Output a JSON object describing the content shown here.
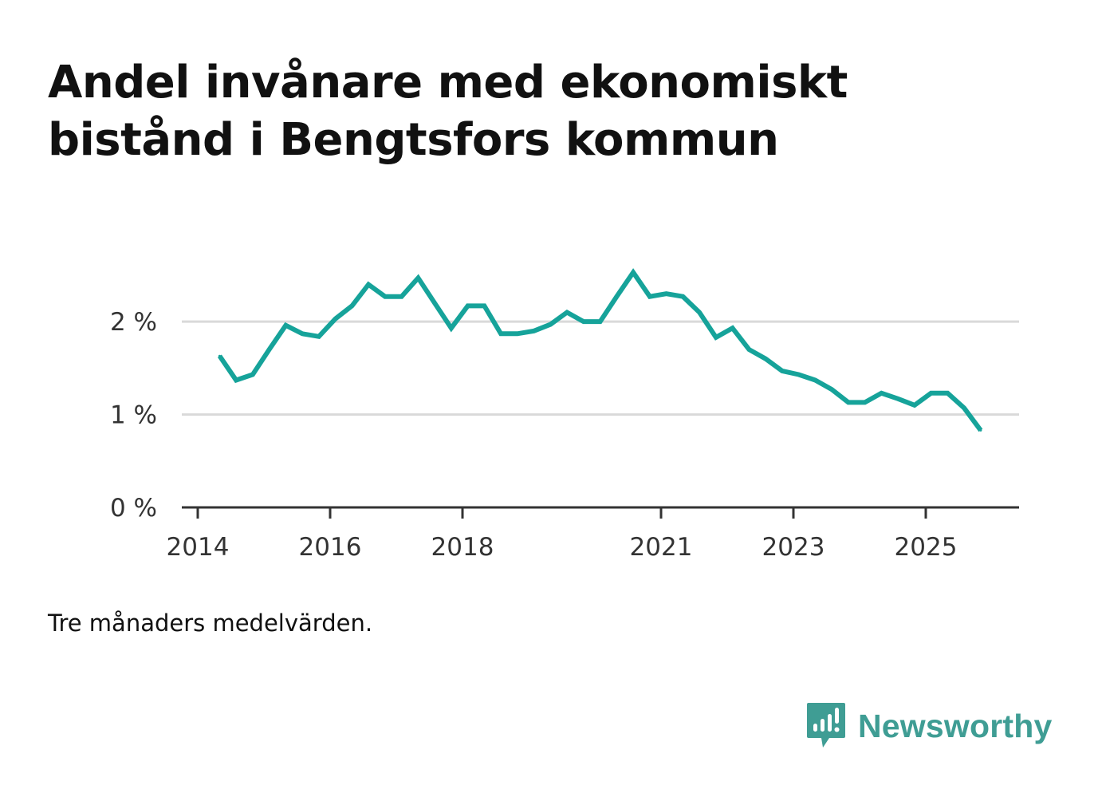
{
  "title": "Andel invånare med ekonomiskt bistånd i Bengtsfors kommun",
  "note": "Tre månaders medelvärden.",
  "brand": {
    "name": "Newsworthy",
    "icon": "newsworthy-logo-icon",
    "color": "#3f9d94"
  },
  "colors": {
    "line": "#16a39a",
    "grid": "#d9d9d9",
    "axis": "#333333"
  },
  "chart_data": {
    "type": "line",
    "title": "Andel invånare med ekonomiskt bistånd i Bengtsfors kommun",
    "xlabel": "",
    "ylabel": "",
    "ylim": [
      0,
      2.8
    ],
    "xlim": [
      2014,
      2026.4
    ],
    "y_ticks": [
      {
        "value": 0,
        "label": "0 %"
      },
      {
        "value": 1,
        "label": "1 %"
      },
      {
        "value": 2,
        "label": "2 %"
      }
    ],
    "x_ticks": [
      {
        "value": 2014,
        "label": "2014"
      },
      {
        "value": 2016,
        "label": "2016"
      },
      {
        "value": 2018,
        "label": "2018"
      },
      {
        "value": 2021,
        "label": "2021"
      },
      {
        "value": 2023,
        "label": "2023"
      },
      {
        "value": 2025,
        "label": "2025"
      }
    ],
    "grid": true,
    "series": [
      {
        "name": "Andel invånare med ekonomiskt bistånd",
        "x": [
          2014.33,
          2014.58,
          2014.83,
          2015.08,
          2015.33,
          2015.58,
          2015.83,
          2016.08,
          2016.33,
          2016.58,
          2016.83,
          2017.08,
          2017.33,
          2017.58,
          2017.83,
          2018.08,
          2018.33,
          2018.58,
          2018.83,
          2019.08,
          2019.33,
          2019.58,
          2019.83,
          2020.08,
          2020.33,
          2020.58,
          2020.83,
          2021.08,
          2021.33,
          2021.58,
          2021.83,
          2022.08,
          2022.33,
          2022.58,
          2022.83,
          2023.08,
          2023.33,
          2023.58,
          2023.83,
          2024.08,
          2024.33,
          2024.58,
          2024.83,
          2025.08,
          2025.33,
          2025.58,
          2025.83
        ],
        "values": [
          1.63,
          1.37,
          1.43,
          1.7,
          1.96,
          1.87,
          1.84,
          2.03,
          2.17,
          2.4,
          2.27,
          2.27,
          2.47,
          2.2,
          1.93,
          2.17,
          2.17,
          1.87,
          1.87,
          1.9,
          1.97,
          2.1,
          2.0,
          2.0,
          2.27,
          2.53,
          2.27,
          2.3,
          2.27,
          2.1,
          1.83,
          1.93,
          1.7,
          1.6,
          1.47,
          1.43,
          1.37,
          1.27,
          1.13,
          1.13,
          1.23,
          1.17,
          1.1,
          1.23,
          1.23,
          1.07,
          0.83
        ]
      }
    ]
  }
}
